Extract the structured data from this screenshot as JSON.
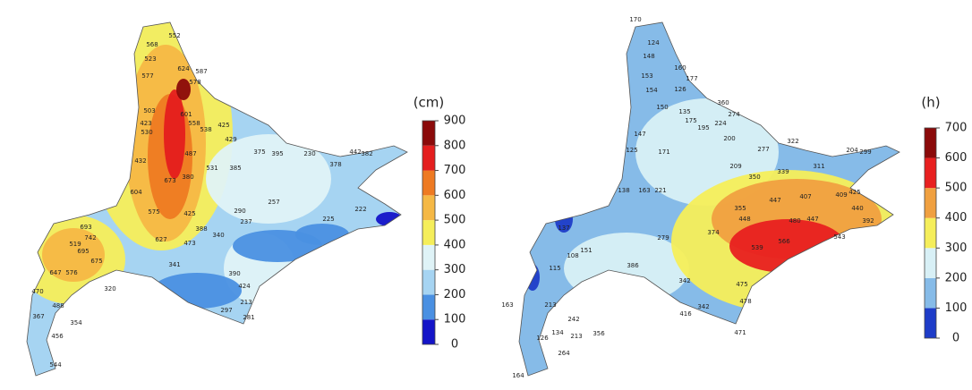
{
  "maps": [
    {
      "unit": "(cm)",
      "legend": {
        "ticks": [
          0,
          100,
          200,
          300,
          400,
          500,
          600,
          700,
          800,
          900
        ],
        "colors": [
          "#1414c8",
          "#4a90e2",
          "#a6d4f2",
          "#dff3f7",
          "#f5ee5a",
          "#f5b845",
          "#ee7a22",
          "#e41e1e",
          "#8b0a0a"
        ]
      },
      "stations": [
        568,
        552,
        523,
        624,
        577,
        587,
        578,
        503,
        601,
        423,
        530,
        558,
        538,
        425,
        429,
        487,
        432,
        531,
        385,
        375,
        395,
        230,
        378,
        442,
        382,
        673,
        380,
        604,
        575,
        425,
        290,
        237,
        257,
        225,
        222,
        693,
        742,
        519,
        695,
        675,
        627,
        473,
        388,
        340,
        647,
        576,
        470,
        488,
        320,
        341,
        390,
        424,
        297,
        213,
        281,
        367,
        354,
        456,
        544
      ]
    },
    {
      "unit": "(h)",
      "legend": {
        "ticks": [
          0,
          100,
          200,
          300,
          400,
          500,
          600,
          700
        ],
        "colors": [
          "#1e3cc8",
          "#86bbe8",
          "#d8f0f6",
          "#f5ee5a",
          "#f0a040",
          "#e82020",
          "#8b0a0a"
        ]
      },
      "stations": [
        170,
        124,
        148,
        160,
        177,
        153,
        154,
        126,
        135,
        360,
        274,
        150,
        175,
        195,
        224,
        200,
        147,
        125,
        171,
        209,
        277,
        322,
        204,
        299,
        311,
        350,
        339,
        138,
        163,
        221,
        447,
        407,
        409,
        425,
        355,
        448,
        440,
        480,
        447,
        392,
        279,
        374,
        539,
        566,
        543,
        137,
        151,
        108,
        386,
        342,
        475,
        478,
        342,
        416,
        115,
        213,
        163,
        242,
        356,
        126,
        134,
        213,
        264,
        164,
        471
      ]
    }
  ]
}
